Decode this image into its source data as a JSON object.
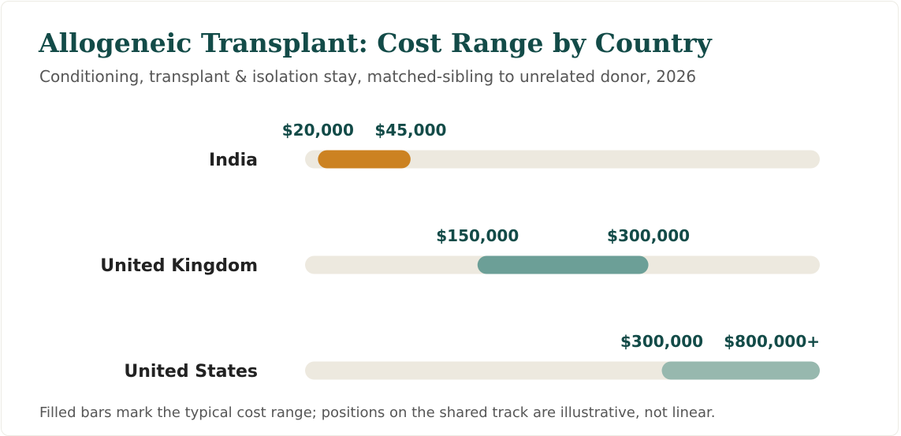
{
  "header": {
    "title": "Allogeneic Transplant: Cost Range by Country",
    "subtitle": "Conditioning, transplant & isolation stay, matched-sibling to unrelated donor, 2026"
  },
  "footnote": "Filled bars mark the typical cost range; positions on the shared track are illustrative, not linear.",
  "colors": {
    "track": "#ede9df",
    "value_label": "#134b48",
    "country_label": "#222222"
  },
  "chart_data": {
    "type": "bar",
    "orientation": "horizontal-range",
    "axis_scale": "illustrative, non-linear",
    "grid": false,
    "legend": "none",
    "categories": [
      "India",
      "United Kingdom",
      "United States"
    ],
    "series": [
      {
        "category": "India",
        "low": 20000,
        "high": 45000,
        "low_label": "$20,000",
        "high_label": "$45,000",
        "track_fraction": [
          0.025,
          0.205
        ],
        "color": "#cc8221"
      },
      {
        "category": "United Kingdom",
        "low": 150000,
        "high": 300000,
        "low_label": "$150,000",
        "high_label": "$300,000",
        "track_fraction": [
          0.335,
          0.667
        ],
        "color": "#6c9f97"
      },
      {
        "category": "United States",
        "low": 300000,
        "high": 800000,
        "low_label": "$300,000",
        "high_label": "$800,000+",
        "track_fraction": [
          0.693,
          1.0
        ],
        "color": "#97b8ae"
      }
    ]
  }
}
